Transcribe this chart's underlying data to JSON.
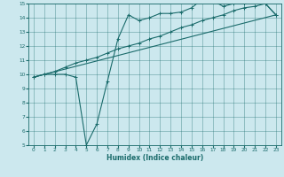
{
  "xlabel": "Humidex (Indice chaleur)",
  "xlim": [
    -0.5,
    23.5
  ],
  "ylim": [
    5,
    15
  ],
  "xticks": [
    0,
    1,
    2,
    3,
    4,
    5,
    6,
    7,
    8,
    9,
    10,
    11,
    12,
    13,
    14,
    15,
    16,
    17,
    18,
    19,
    20,
    21,
    22,
    23
  ],
  "yticks": [
    5,
    6,
    7,
    8,
    9,
    10,
    11,
    12,
    13,
    14,
    15
  ],
  "bg_color": "#cce8ee",
  "line_color": "#1a6b6b",
  "line1_x": [
    0,
    1,
    2,
    3,
    4,
    5,
    6,
    7,
    8,
    9,
    10,
    11,
    12,
    13,
    14,
    15,
    16,
    17,
    18,
    19,
    20,
    21,
    22,
    23
  ],
  "line1_y": [
    9.8,
    10.0,
    10.0,
    10.0,
    9.8,
    5.0,
    6.5,
    9.5,
    12.5,
    14.2,
    13.8,
    14.0,
    14.3,
    14.3,
    14.4,
    14.7,
    15.3,
    15.2,
    14.8,
    15.0,
    15.0,
    15.2,
    15.0,
    14.2
  ],
  "line2_x": [
    0,
    1,
    2,
    3,
    4,
    5,
    6,
    7,
    8,
    9,
    10,
    11,
    12,
    13,
    14,
    15,
    16,
    17,
    18,
    19,
    20,
    21,
    22,
    23
  ],
  "line2_y": [
    9.8,
    10.0,
    10.2,
    10.5,
    10.8,
    11.0,
    11.2,
    11.5,
    11.8,
    12.0,
    12.2,
    12.5,
    12.7,
    13.0,
    13.3,
    13.5,
    13.8,
    14.0,
    14.2,
    14.5,
    14.7,
    14.8,
    15.0,
    14.2
  ],
  "line3_x": [
    0,
    23
  ],
  "line3_y": [
    9.8,
    14.2
  ],
  "xlabel_fontsize": 5.5,
  "tick_fontsize": 4.2,
  "linewidth": 0.8,
  "markersize": 2.5,
  "grid_alpha": 0.6,
  "grid_linewidth": 0.4
}
